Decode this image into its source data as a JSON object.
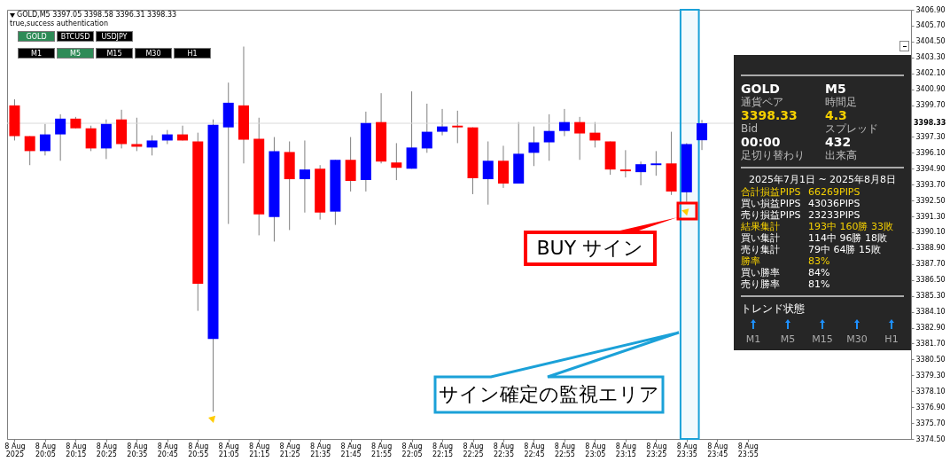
{
  "chart_data": [
    {
      "type": "candlestick",
      "title": "GOLD,M5  3397.05 3398.58 3396.31 3398.33",
      "subtitle": "true,success authentication",
      "x": [
        "2025-08-08T19:55",
        "2025-08-08T20:00",
        "2025-08-08T20:05",
        "2025-08-08T20:10",
        "2025-08-08T20:15",
        "2025-08-08T20:20",
        "2025-08-08T20:25",
        "2025-08-08T20:30",
        "2025-08-08T20:35",
        "2025-08-08T20:40",
        "2025-08-08T20:45",
        "2025-08-08T20:50",
        "2025-08-08T20:55",
        "2025-08-08T21:00",
        "2025-08-08T21:05",
        "2025-08-08T21:10",
        "2025-08-08T21:15",
        "2025-08-08T21:20",
        "2025-08-08T21:25",
        "2025-08-08T21:30",
        "2025-08-08T21:35",
        "2025-08-08T21:40",
        "2025-08-08T21:45",
        "2025-08-08T21:50",
        "2025-08-08T21:55",
        "2025-08-08T22:00",
        "2025-08-08T22:05",
        "2025-08-08T22:10",
        "2025-08-08T22:15",
        "2025-08-08T22:20",
        "2025-08-08T22:25",
        "2025-08-08T22:30",
        "2025-08-08T22:35",
        "2025-08-08T22:40",
        "2025-08-08T22:45",
        "2025-08-08T22:50",
        "2025-08-08T22:55",
        "2025-08-08T23:00",
        "2025-08-08T23:05",
        "2025-08-08T23:10",
        "2025-08-08T23:15",
        "2025-08-08T23:20",
        "2025-08-08T23:25",
        "2025-08-08T23:30",
        "2025-08-08T23:35",
        "2025-08-08T23:40"
      ],
      "ohlc": [
        [
          3399.68,
          3400.14,
          3397.03,
          3397.36
        ],
        [
          3397.36,
          3397.36,
          3395.17,
          3396.23
        ],
        [
          3396.23,
          3398.28,
          3395.9,
          3397.49
        ],
        [
          3397.49,
          3399.01,
          3395.5,
          3398.68
        ],
        [
          3398.68,
          3398.81,
          3397.95,
          3397.95
        ],
        [
          3397.95,
          3398.15,
          3396.23,
          3396.43
        ],
        [
          3396.43,
          3398.62,
          3395.63,
          3398.28
        ],
        [
          3398.62,
          3399.35,
          3396.43,
          3396.76
        ],
        [
          3396.76,
          3398.75,
          3396.23,
          3396.56
        ],
        [
          3396.5,
          3397.42,
          3395.9,
          3397.03
        ],
        [
          3397.03,
          3397.82,
          3396.76,
          3397.49
        ],
        [
          3397.49,
          3398.15,
          3397.03,
          3397.03
        ],
        [
          3396.96,
          3397.62,
          3384.17,
          3386.22
        ],
        [
          3382.05,
          3398.62,
          3376.55,
          3398.22
        ],
        [
          3398.02,
          3401.4,
          3390.73,
          3399.88
        ],
        [
          3399.68,
          3404.12,
          3395.3,
          3397.09
        ],
        [
          3397.16,
          3398.75,
          3389.87,
          3391.46
        ],
        [
          3391.26,
          3397.29,
          3389.4,
          3396.23
        ],
        [
          3396.16,
          3396.96,
          3390.27,
          3394.11
        ],
        [
          3394.11,
          3397.03,
          3391.59,
          3394.84
        ],
        [
          3394.9,
          3395.17,
          3391.06,
          3391.59
        ],
        [
          3391.66,
          3395.57,
          3390.66,
          3395.57
        ],
        [
          3395.57,
          3397.29,
          3393.18,
          3393.98
        ],
        [
          3394.04,
          3399.21,
          3393.18,
          3398.35
        ],
        [
          3398.42,
          3400.6,
          3395.3,
          3395.44
        ],
        [
          3395.37,
          3396.83,
          3394.04,
          3394.97
        ],
        [
          3394.9,
          3400.74,
          3394.9,
          3396.5
        ],
        [
          3396.43,
          3399.81,
          3396.1,
          3397.69
        ],
        [
          3397.69,
          3399.41,
          3397.42,
          3398.09
        ],
        [
          3398.15,
          3399.28,
          3396.83,
          3398.02
        ],
        [
          3398.02,
          3398.02,
          3392.98,
          3394.18
        ],
        [
          3394.11,
          3396.96,
          3392.19,
          3395.5
        ],
        [
          3395.5,
          3396.63,
          3393.45,
          3393.78
        ],
        [
          3393.78,
          3398.42,
          3393.78,
          3396.03
        ],
        [
          3396.1,
          3398.09,
          3395.1,
          3396.89
        ],
        [
          3396.89,
          3399.01,
          3395.5,
          3397.75
        ],
        [
          3397.75,
          3399.41,
          3397.36,
          3398.42
        ],
        [
          3398.42,
          3398.81,
          3395.57,
          3397.56
        ],
        [
          3397.62,
          3398.42,
          3396.5,
          3397.03
        ],
        [
          3396.96,
          3396.96,
          3394.44,
          3394.84
        ],
        [
          3394.84,
          3396.3,
          3394.24,
          3394.71
        ],
        [
          3394.64,
          3395.44,
          3393.65,
          3395.24
        ],
        [
          3395.17,
          3396.23,
          3394.37,
          3395.3
        ],
        [
          3395.3,
          3397.69,
          3392.92,
          3393.18
        ],
        [
          3393.12,
          3396.83,
          3392.39,
          3396.76
        ],
        [
          3397.05,
          3398.58,
          3396.31,
          3398.33
        ]
      ],
      "colors": [
        "#ff0000",
        "#ff0000",
        "#0000ff",
        "#0000ff",
        "#ff0000",
        "#ff0000",
        "#0000ff",
        "#ff0000",
        "#ff0000",
        "#0000ff",
        "#0000ff",
        "#ff0000",
        "#ff0000",
        "#0000ff",
        "#0000ff",
        "#ff0000",
        "#ff0000",
        "#0000ff",
        "#ff0000",
        "#0000ff",
        "#ff0000",
        "#0000ff",
        "#ff0000",
        "#0000ff",
        "#ff0000",
        "#ff0000",
        "#0000ff",
        "#0000ff",
        "#0000ff",
        "#ff0000",
        "#ff0000",
        "#0000ff",
        "#ff0000",
        "#0000ff",
        "#0000ff",
        "#0000ff",
        "#0000ff",
        "#ff0000",
        "#ff0000",
        "#ff0000",
        "#ff0000",
        "#0000ff",
        "#0000ff",
        "#ff0000",
        "#0000ff",
        "#0000ff"
      ],
      "series": [
        {
          "type": "scatter",
          "color": "#ffcc00",
          "x": [
            "2025-08-08T21:00",
            "2025-08-08T23:35"
          ],
          "values": [
            3376.08,
            3391.72
          ]
        }
      ],
      "marker": "triangle",
      "xlim": [
        "2025-08-08T19:54",
        "2025-08-09T00:47"
      ],
      "xticks": [
        {
          "value": "2025-08-08T19:55",
          "label": "8 Aug 2025"
        },
        {
          "value": "2025-08-08T20:05",
          "label": "8 Aug 20:05"
        },
        {
          "value": "2025-08-08T20:15",
          "label": "8 Aug 20:15"
        },
        {
          "value": "2025-08-08T20:25",
          "label": "8 Aug 20:25"
        },
        {
          "value": "2025-08-08T20:35",
          "label": "8 Aug 20:35"
        },
        {
          "value": "2025-08-08T20:45",
          "label": "8 Aug 20:45"
        },
        {
          "value": "2025-08-08T20:55",
          "label": "8 Aug 20:55"
        },
        {
          "value": "2025-08-08T21:05",
          "label": "8 Aug 21:05"
        },
        {
          "value": "2025-08-08T21:15",
          "label": "8 Aug 21:15"
        },
        {
          "value": "2025-08-08T21:25",
          "label": "8 Aug 21:25"
        },
        {
          "value": "2025-08-08T21:35",
          "label": "8 Aug 21:35"
        },
        {
          "value": "2025-08-08T21:45",
          "label": "8 Aug 21:45"
        },
        {
          "value": "2025-08-08T21:55",
          "label": "8 Aug 21:55"
        },
        {
          "value": "2025-08-08T22:05",
          "label": "8 Aug 22:05"
        },
        {
          "value": "2025-08-08T22:15",
          "label": "8 Aug 22:15"
        },
        {
          "value": "2025-08-08T22:25",
          "label": "8 Aug 22:25"
        },
        {
          "value": "2025-08-08T22:35",
          "label": "8 Aug 22:35"
        },
        {
          "value": "2025-08-08T22:45",
          "label": "8 Aug 22:45"
        },
        {
          "value": "2025-08-08T22:55",
          "label": "8 Aug 22:55"
        },
        {
          "value": "2025-08-08T23:05",
          "label": "8 Aug 23:05"
        },
        {
          "value": "2025-08-08T23:15",
          "label": "8 Aug 23:15"
        },
        {
          "value": "2025-08-08T23:25",
          "label": "8 Aug 23:25"
        },
        {
          "value": "2025-08-08T23:35",
          "label": "8 Aug 23:35"
        },
        {
          "value": "2025-08-08T23:45",
          "label": "8 Aug 23:45"
        },
        {
          "value": "2025-08-08T23:55",
          "label": "8 Aug 23:55"
        }
      ],
      "ylim": [
        3374.5,
        3406.9
      ],
      "yticks": [
        {
          "value": 3374.5,
          "label": "3374.50"
        },
        {
          "value": 3375.7,
          "label": "3375.70"
        },
        {
          "value": 3376.9,
          "label": "3376.90"
        },
        {
          "value": 3378.1,
          "label": "3378.10"
        },
        {
          "value": 3379.3,
          "label": "3379.30"
        },
        {
          "value": 3380.5,
          "label": "3380.50"
        },
        {
          "value": 3381.7,
          "label": "3381.70"
        },
        {
          "value": 3382.9,
          "label": "3382.90"
        },
        {
          "value": 3384.1,
          "label": "3384.10"
        },
        {
          "value": 3385.3,
          "label": "3385.30"
        },
        {
          "value": 3386.5,
          "label": "3386.50"
        },
        {
          "value": 3387.7,
          "label": "3387.70"
        },
        {
          "value": 3388.9,
          "label": "3388.90"
        },
        {
          "value": 3390.1,
          "label": "3390.10"
        },
        {
          "value": 3391.3,
          "label": "3391.30"
        },
        {
          "value": 3392.5,
          "label": "3392.50"
        },
        {
          "value": 3393.7,
          "label": "3393.70"
        },
        {
          "value": 3394.9,
          "label": "3394.90"
        },
        {
          "value": 3396.1,
          "label": "3396.10"
        },
        {
          "value": 3397.3,
          "label": "3397.30"
        },
        {
          "value": 3399.7,
          "label": "3399.70"
        },
        {
          "value": 3400.9,
          "label": "3400.90"
        },
        {
          "value": 3402.1,
          "label": "3402.10"
        },
        {
          "value": 3403.3,
          "label": "3403.30"
        },
        {
          "value": 3404.5,
          "label": "3404.50"
        },
        {
          "value": 3405.7,
          "label": "3405.70"
        },
        {
          "value": 3406.9,
          "label": "3406.90"
        }
      ],
      "ref_lines": [
        {
          "axis": "y",
          "value": 3398.33,
          "label": "3398.33",
          "color": "#d9d9d9"
        }
      ],
      "bands": [
        {
          "axis": "x",
          "from": "2025-08-08T23:33",
          "to": "2025-08-08T23:39",
          "label": "サイン確定の監視エリア",
          "color": "#1ba1d8"
        }
      ],
      "annotations": [
        "GOLD",
        "BTCUSD",
        "USDJPY",
        "M1",
        "M5",
        "M15",
        "M30",
        "H1",
        {
          "text": "BUY サイン",
          "x": "2025-08-08T23:35",
          "y": 3391.72
        }
      ]
    },
    {
      "type": "other",
      "annotations": [
        "GOLD",
        "通貨ペア",
        "3398.33",
        "Bid",
        "00:00",
        "足切り替わり",
        "M5",
        "時間足",
        "4.3",
        "スプレッド",
        "432",
        "出来高",
        "2025年7月1日 ~ 2025年8月8日",
        "合計損益PIPS",
        "66269PIPS",
        "買い損益PIPS",
        "43036PIPS",
        "売り損益PIPS",
        "23233PIPS",
        "結果集計",
        "193中 160勝 33敗",
        "買い集計",
        "114中 96勝 18敗",
        "売り集計",
        "79中 64勝 15敗",
        "勝率",
        "83%",
        "買い勝率",
        "84%",
        "売り勝率",
        "81%",
        "トレンド状態",
        "M1",
        "M5",
        "M15",
        "M30",
        "H1"
      ]
    }
  ]
}
